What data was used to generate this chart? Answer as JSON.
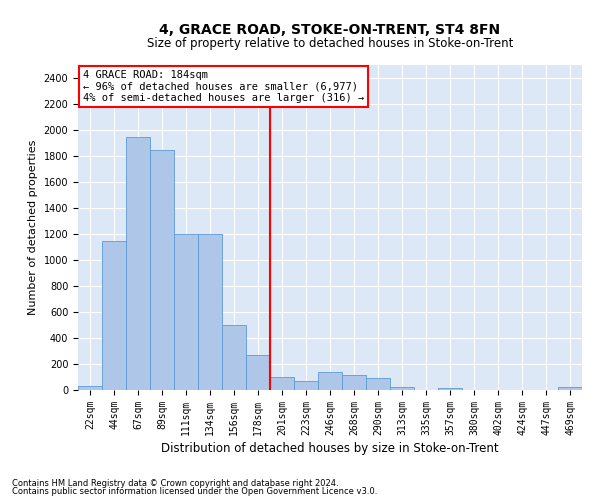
{
  "title": "4, GRACE ROAD, STOKE-ON-TRENT, ST4 8FN",
  "subtitle": "Size of property relative to detached houses in Stoke-on-Trent",
  "xlabel": "Distribution of detached houses by size in Stoke-on-Trent",
  "ylabel": "Number of detached properties",
  "footnote1": "Contains HM Land Registry data © Crown copyright and database right 2024.",
  "footnote2": "Contains public sector information licensed under the Open Government Licence v3.0.",
  "annotation_title": "4 GRACE ROAD: 184sqm",
  "annotation_line1": "← 96% of detached houses are smaller (6,977)",
  "annotation_line2": "4% of semi-detached houses are larger (316) →",
  "bar_color": "#aec6e8",
  "bar_edge_color": "#5b9bd5",
  "vline_color": "red",
  "bg_color": "#dce8f5",
  "grid_color": "#ffffff",
  "categories": [
    "22sqm",
    "44sqm",
    "67sqm",
    "89sqm",
    "111sqm",
    "134sqm",
    "156sqm",
    "178sqm",
    "201sqm",
    "223sqm",
    "246sqm",
    "268sqm",
    "290sqm",
    "313sqm",
    "335sqm",
    "357sqm",
    "380sqm",
    "402sqm",
    "424sqm",
    "447sqm",
    "469sqm"
  ],
  "values": [
    30,
    1150,
    1950,
    1850,
    1200,
    1200,
    500,
    270,
    100,
    70,
    140,
    115,
    90,
    25,
    0,
    15,
    0,
    0,
    0,
    0,
    25
  ],
  "ylim": [
    0,
    2500
  ],
  "yticks": [
    0,
    200,
    400,
    600,
    800,
    1000,
    1200,
    1400,
    1600,
    1800,
    2000,
    2200,
    2400
  ],
  "vline_x_index": 7.5,
  "title_fontsize": 10,
  "subtitle_fontsize": 8.5,
  "ylabel_fontsize": 8,
  "xlabel_fontsize": 8.5,
  "tick_fontsize": 7,
  "annotation_fontsize": 7.5,
  "footnote_fontsize": 6
}
